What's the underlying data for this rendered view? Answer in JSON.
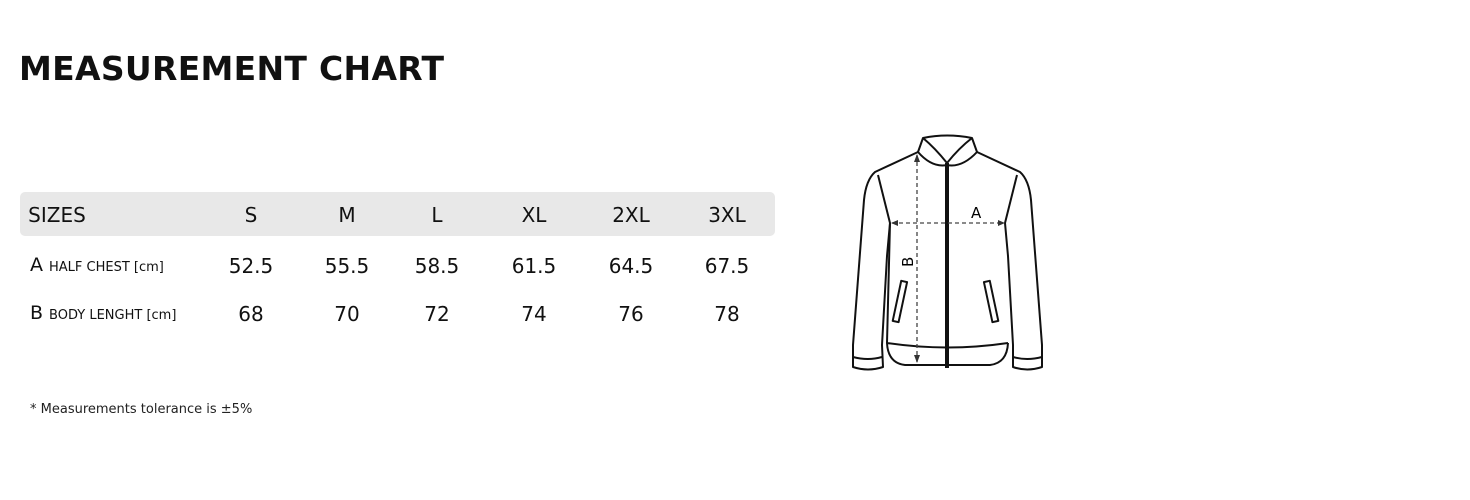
{
  "title": "MEASUREMENT CHART",
  "table": {
    "header": {
      "label": "SIZES",
      "sizes": [
        "S",
        "M",
        "L",
        "XL",
        "2XL",
        "3XL"
      ]
    },
    "rows": [
      {
        "letter": "A",
        "label": "HALF CHEST [cm]",
        "values": [
          "52.5",
          "55.5",
          "58.5",
          "61.5",
          "64.5",
          "67.5"
        ]
      },
      {
        "letter": "B",
        "label": "BODY LENGHT [cm]",
        "values": [
          "68",
          "70",
          "72",
          "74",
          "76",
          "78"
        ]
      }
    ]
  },
  "note": "* Measurements tolerance is ±5%",
  "diagram": {
    "label_a": "A",
    "label_b": "B"
  }
}
